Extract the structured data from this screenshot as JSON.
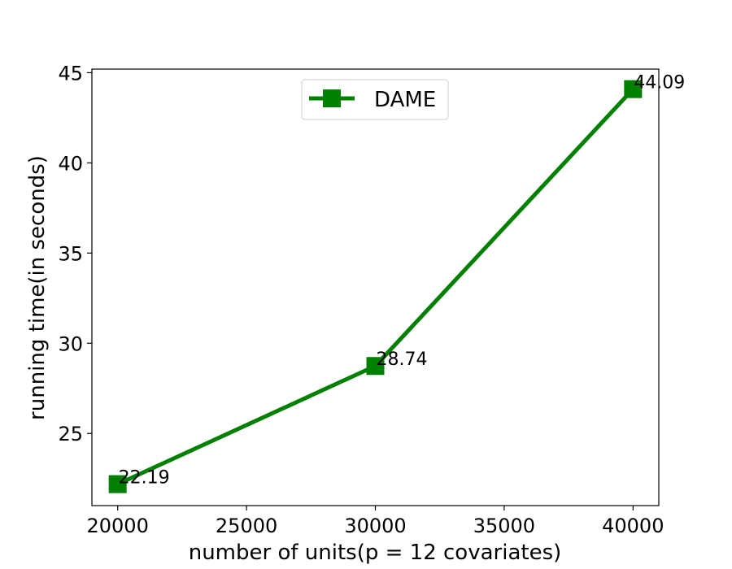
{
  "chart_data": {
    "type": "line",
    "title": "",
    "xlabel": "number of units(p = 12 covariates)",
    "ylabel": "running time(in seconds)",
    "xlim": [
      19000,
      41000
    ],
    "ylim": [
      21,
      45.2
    ],
    "xticks": [
      20000,
      25000,
      30000,
      35000,
      40000
    ],
    "yticks": [
      25,
      30,
      35,
      40,
      45
    ],
    "grid": false,
    "legend": {
      "placement": "upper-center"
    },
    "series": [
      {
        "name": "DAME",
        "color": "#008000",
        "marker": "square",
        "x": [
          20000,
          30000,
          40000
        ],
        "y": [
          22.19,
          28.74,
          44.09
        ],
        "labels": [
          "22.19",
          "28.74",
          "44.09"
        ]
      }
    ]
  }
}
